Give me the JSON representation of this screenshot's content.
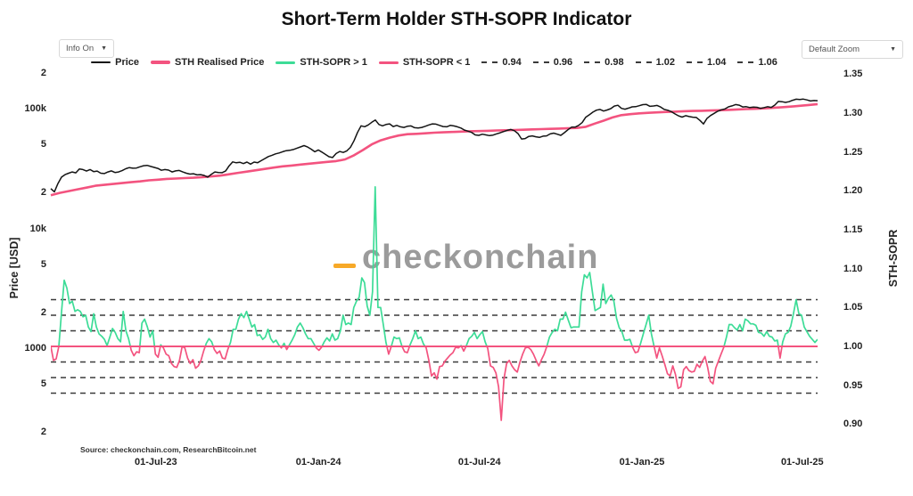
{
  "header": {
    "title": "Short-Term Holder STH-SOPR Indicator"
  },
  "controls": {
    "info_button": {
      "label": "Info On",
      "arrow": "▼"
    },
    "zoom_button": {
      "label": "Default Zoom",
      "arrow": "▼"
    }
  },
  "watermark": {
    "text": "checkonchain",
    "dash_color": "#f7a928"
  },
  "source": {
    "text": "Source: checkonchain.com, ResearchBitcoin.net"
  },
  "legend": {
    "items": [
      {
        "label": "Price",
        "type": "line",
        "color": "#141414",
        "thick": 2
      },
      {
        "label": "STH Realised Price",
        "type": "line",
        "color": "#f3537f",
        "thick": 4
      },
      {
        "label": "STH-SOPR > 1",
        "type": "line",
        "color": "#3ddc97",
        "thick": 3
      },
      {
        "label": "STH-SOPR < 1",
        "type": "line",
        "color": "#f3537f",
        "thick": 3
      },
      {
        "label": "0.94",
        "type": "dash",
        "color": "#3a3a3a"
      },
      {
        "label": "0.96",
        "type": "dash",
        "color": "#3a3a3a"
      },
      {
        "label": "0.98",
        "type": "dash",
        "color": "#3a3a3a"
      },
      {
        "label": "1.02",
        "type": "dash",
        "color": "#3a3a3a"
      },
      {
        "label": "1.04",
        "type": "dash",
        "color": "#3a3a3a"
      },
      {
        "label": "1.06",
        "type": "dash",
        "color": "#3a3a3a"
      }
    ]
  },
  "axes": {
    "price": {
      "title": "Price [USD]"
    },
    "sopr": {
      "title": "STH-SOPR"
    }
  },
  "chart_data": {
    "type": "line",
    "title": "Short-Term Holder STH-SOPR Indicator",
    "grid": "off",
    "legend_position": "top-center",
    "colors": {
      "price": "#141414",
      "realised": "#f3537f",
      "sopr_above_1": "#3ddc97",
      "sopr_below_1": "#f3537f",
      "ref_line": "#3a3a3a",
      "unity_line": "#f3537f"
    },
    "x_axis": {
      "range_hint": [
        "Apr-2023",
        "Aug-2025"
      ],
      "ticks": [
        {
          "label": "01-Jul-23",
          "f": 0.137
        },
        {
          "label": "01-Jan-24",
          "f": 0.349
        },
        {
          "label": "01-Jul-24",
          "f": 0.559
        },
        {
          "label": "01-Jan-25",
          "f": 0.771
        },
        {
          "label": "01-Jul-25",
          "f": 0.98
        }
      ]
    },
    "price_axis": {
      "title": "Price [USD]",
      "scale": "log",
      "unit": "USD",
      "ticks": [
        {
          "value": 200000,
          "label": "2"
        },
        {
          "value": 100000,
          "label": "100k"
        },
        {
          "value": 50000,
          "label": "5"
        },
        {
          "value": 20000,
          "label": "2"
        },
        {
          "value": 10000,
          "label": "10k"
        },
        {
          "value": 5000,
          "label": "5"
        },
        {
          "value": 2000,
          "label": "2"
        },
        {
          "value": 1000,
          "label": "1000"
        },
        {
          "value": 500,
          "label": "5"
        },
        {
          "value": 200,
          "label": "2"
        }
      ]
    },
    "sopr_axis": {
      "title": "STH-SOPR",
      "scale": "linear",
      "range": [
        0.88,
        1.37
      ],
      "ticks": [
        {
          "value": 1.35,
          "label": "1.35"
        },
        {
          "value": 1.3,
          "label": "1.30"
        },
        {
          "value": 1.25,
          "label": "1.25"
        },
        {
          "value": 1.2,
          "label": "1.20"
        },
        {
          "value": 1.15,
          "label": "1.15"
        },
        {
          "value": 1.1,
          "label": "1.10"
        },
        {
          "value": 1.05,
          "label": "1.05"
        },
        {
          "value": 1.0,
          "label": "1.00"
        },
        {
          "value": 0.95,
          "label": "0.95"
        },
        {
          "value": 0.9,
          "label": "0.90"
        }
      ]
    },
    "ref_lines": [
      0.94,
      0.96,
      0.98,
      1.02,
      1.04,
      1.06
    ],
    "unity_line": 1.0,
    "series": [
      {
        "name": "Price",
        "axis": "price",
        "unit": "USD_thousands",
        "values": [
          21.5,
          20.2,
          23.7,
          26.8,
          28.1,
          28.9,
          29.6,
          29.1,
          31.3,
          31.0,
          30.1,
          31.0,
          29.8,
          30.1,
          28.9,
          28.7,
          29.6,
          30.2,
          29.3,
          29.6,
          30.4,
          31.5,
          32.2,
          31.8,
          31.9,
          32.7,
          33.4,
          33.6,
          32.9,
          32.3,
          31.7,
          30.6,
          31.0,
          30.7,
          29.6,
          30.2,
          30.5,
          29.6,
          28.9,
          28.4,
          28.6,
          28.0,
          28.1,
          27.7,
          26.8,
          28.3,
          29.6,
          29.3,
          29.2,
          30.1,
          33.3,
          35.9,
          35.3,
          35.7,
          34.8,
          35.8,
          34.4,
          35.8,
          35.4,
          36.8,
          38.3,
          39.8,
          40.8,
          41.9,
          42.6,
          43.7,
          44.6,
          44.9,
          45.6,
          46.8,
          47.9,
          49.1,
          47.8,
          45.9,
          43.7,
          45.2,
          43.4,
          41.5,
          39.7,
          39.1,
          42.2,
          43.9,
          43.1,
          44.4,
          47.5,
          53.8,
          63.3,
          71.9,
          70.7,
          73.1,
          77.0,
          80.3,
          73.7,
          71.9,
          73.7,
          74.6,
          70.9,
          72.5,
          70.5,
          69.7,
          71.3,
          71.7,
          69.3,
          68.9,
          69.7,
          71.3,
          73.1,
          74.6,
          74.2,
          72.5,
          70.9,
          70.5,
          72.5,
          71.7,
          70.5,
          68.9,
          66.2,
          64.8,
          63.3,
          60.4,
          59.8,
          61.2,
          60.4,
          59.5,
          60.1,
          61.6,
          62.9,
          64.4,
          65.8,
          67.0,
          65.4,
          61.9,
          55.8,
          56.3,
          58.6,
          59.2,
          58.2,
          57.5,
          58.9,
          59.2,
          61.5,
          62.5,
          61.2,
          59.8,
          63.0,
          66.7,
          70.1,
          70.0,
          72.5,
          76.6,
          84.8,
          88.9,
          93.6,
          97.1,
          98.4,
          95.5,
          97.5,
          100.0,
          105.1,
          106.7,
          100.5,
          98.9,
          101.1,
          103.5,
          103.8,
          105.8,
          108.1,
          108.3,
          104.6,
          105.2,
          106.4,
          103.1,
          98.4,
          96.9,
          94.3,
          90.4,
          87.0,
          85.0,
          87.3,
          85.9,
          84.8,
          84.4,
          79.8,
          74.5,
          83.0,
          87.7,
          91.4,
          95.1,
          97.8,
          99.4,
          103.5,
          105.5,
          108.2,
          106.9,
          103.3,
          103.8,
          102.1,
          103.1,
          102.6,
          100.5,
          102.1,
          103.8,
          102.4,
          107.0,
          114.9,
          114.2,
          112.8,
          114.2,
          117.5,
          119.9,
          119.2,
          120.1,
          118.2,
          115.9,
          116.9,
          116.4
        ]
      },
      {
        "name": "STH Realised Price",
        "axis": "price",
        "unit": "USD_thousands",
        "values": [
          18.9,
          19.8,
          20.5,
          21.2,
          21.9,
          22.7,
          23.1,
          23.5,
          23.9,
          24.3,
          24.7,
          25.2,
          25.5,
          25.9,
          26.1,
          26.3,
          26.5,
          26.8,
          27.2,
          27.6,
          28.3,
          29.1,
          29.8,
          30.6,
          31.4,
          32.2,
          33.0,
          33.5,
          34.1,
          34.7,
          35.3,
          35.9,
          36.5,
          37.7,
          40.8,
          45.1,
          50.3,
          54.4,
          57.2,
          59.6,
          61.2,
          61.6,
          62.2,
          63.0,
          63.4,
          63.9,
          64.3,
          64.7,
          65.0,
          65.3,
          65.7,
          66.0,
          66.3,
          66.7,
          67.1,
          67.4,
          67.8,
          68.2,
          68.6,
          69.0,
          70.5,
          75.0,
          79.4,
          84.4,
          88.3,
          89.9,
          91.4,
          92.3,
          93.1,
          93.8,
          94.4,
          95.1,
          95.6,
          96.0,
          96.5,
          97.0,
          97.7,
          98.4,
          99.1,
          99.7,
          100.5,
          101.5,
          102.7,
          104.1,
          105.7,
          107.3,
          109.2
        ]
      },
      {
        "name": "STH-SOPR",
        "axis": "sopr",
        "unit": "ratio",
        "values": [
          1.0,
          0.982,
          0.984,
          1.0,
          1.044,
          1.085,
          1.075,
          1.055,
          1.058,
          1.045,
          1.047,
          1.045,
          1.038,
          1.04,
          1.025,
          1.019,
          1.042,
          1.025,
          1.016,
          1.013,
          1.009,
          1.001,
          1.012,
          1.023,
          1.018,
          1.01,
          1.006,
          1.045,
          1.02,
          1.01,
          0.995,
          0.988,
          0.993,
          0.992,
          1.03,
          1.035,
          1.025,
          1.012,
          1.02,
          0.99,
          0.986,
          1.002,
          0.998,
          0.99,
          0.988,
          0.978,
          0.974,
          0.973,
          0.982,
          1.0,
          0.998,
          0.985,
          0.978,
          0.983,
          0.972,
          0.975,
          0.982,
          0.994,
          1.004,
          1.01,
          1.006,
          0.996,
          0.991,
          0.994,
          0.985,
          0.984,
          0.996,
          1.005,
          1.022,
          1.022,
          1.035,
          1.042,
          1.037,
          1.045,
          1.035,
          1.025,
          1.028,
          1.014,
          1.015,
          1.009,
          1.012,
          1.022,
          1.01,
          1.005,
          1.008,
          1.002,
          0.998,
          1.004,
          0.996,
          1.002,
          1.008,
          1.015,
          1.025,
          1.03,
          1.024,
          1.016,
          1.01,
          1.01,
          1.004,
          0.998,
          0.995,
          0.999,
          1.006,
          1.011,
          1.007,
          1.016,
          1.008,
          1.01,
          1.02,
          1.04,
          1.028,
          1.03,
          1.028,
          1.05,
          1.058,
          1.063,
          1.088,
          1.082,
          1.052,
          1.04,
          1.07,
          1.205,
          1.05,
          1.05,
          1.028,
          1.005,
          0.99,
          1.0,
          1.012,
          1.01,
          1.011,
          1.0,
          0.993,
          0.992,
          1.002,
          1.01,
          1.02,
          1.01,
          1.012,
          1.003,
          0.998,
          0.982,
          0.962,
          0.966,
          0.958,
          0.974,
          0.975,
          0.981,
          0.985,
          0.989,
          0.992,
          0.999,
          0.998,
          1.001,
          0.994,
          1.001,
          1.01,
          1.013,
          1.018,
          1.01,
          1.015,
          1.019,
          1.006,
          0.997,
          0.975,
          0.973,
          0.966,
          0.948,
          0.905,
          0.958,
          0.978,
          0.982,
          0.975,
          0.97,
          0.967,
          0.98,
          0.99,
          0.998,
          0.999,
          0.996,
          0.99,
          0.982,
          0.975,
          0.983,
          0.99,
          1.0,
          1.012,
          1.018,
          1.022,
          1.02,
          1.035,
          1.035,
          1.044,
          1.034,
          1.024,
          1.025,
          1.025,
          1.025,
          1.07,
          1.092,
          1.088,
          1.095,
          1.07,
          1.046,
          1.048,
          1.05,
          1.08,
          1.055,
          1.062,
          1.066,
          1.058,
          1.036,
          1.024,
          1.019,
          1.008,
          1.008,
          1.009,
          0.999,
          0.992,
          0.993,
          1.004,
          1.016,
          1.028,
          1.04,
          1.016,
          1.0,
          0.985,
          0.998,
          0.988,
          0.977,
          0.965,
          0.962,
          0.975,
          0.964,
          0.946,
          0.948,
          0.97,
          0.974,
          0.969,
          0.967,
          0.968,
          0.977,
          0.973,
          0.981,
          0.987,
          0.973,
          0.955,
          0.952,
          0.972,
          0.981,
          0.99,
          0.999,
          1.012,
          1.028,
          1.028,
          1.024,
          1.021,
          1.028,
          1.02,
          1.035,
          1.033,
          1.029,
          1.029,
          1.027,
          1.018,
          1.017,
          1.013,
          1.019,
          1.013,
          1.012,
          1.007,
          1.008,
          0.985,
          1.006,
          1.016,
          1.018,
          1.026,
          1.042,
          1.06,
          1.042,
          1.04,
          1.025,
          1.019,
          1.013,
          1.009,
          1.005,
          1.009
        ]
      }
    ]
  }
}
